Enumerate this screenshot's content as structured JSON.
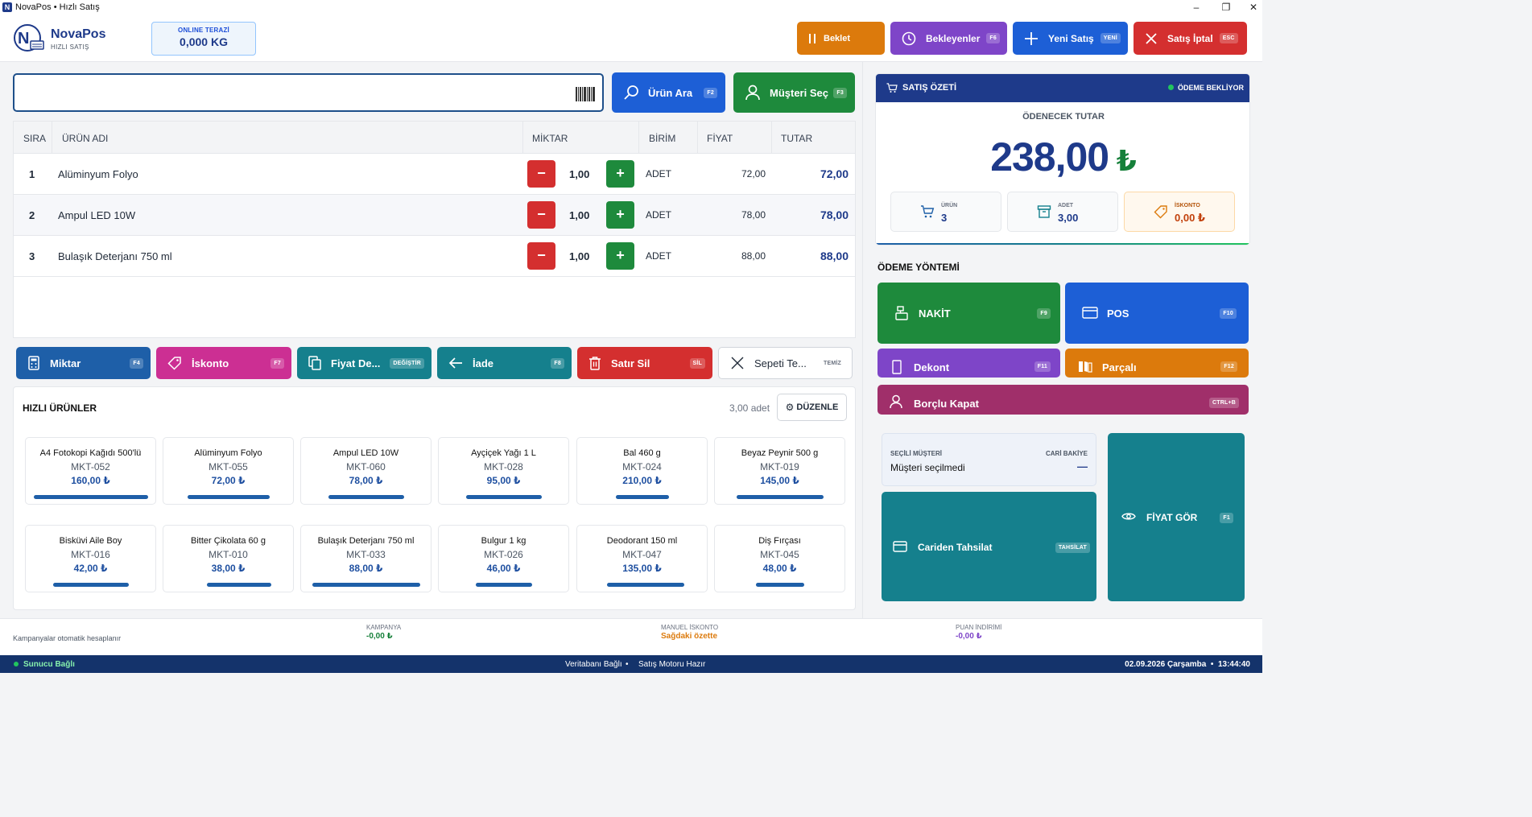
{
  "window": {
    "title": "NovaPos • Hızlı Satış",
    "app_icon": "N"
  },
  "header": {
    "brand": "NovaPos",
    "brand_sub": "HIZLI SATIŞ",
    "scale_label": "ONLINE TERAZİ",
    "scale_value": "0,000 KG",
    "buttons": {
      "hold": {
        "label": "Beklet",
        "color": "#dc7a0c"
      },
      "waiting": {
        "label": "Bekleyenler",
        "key": "F6",
        "color": "#7e45c8"
      },
      "new_sale": {
        "label": "Yeni Satış",
        "key": "YENİ",
        "color": "#1d5fd6"
      },
      "cancel": {
        "label": "Satış İptal",
        "key": "ESC",
        "color": "#d42f2f"
      }
    }
  },
  "search": {
    "placeholder": "",
    "find_product": {
      "label": "Ürün Ara",
      "key": "F2"
    },
    "select_customer": {
      "label": "Müşteri Seç",
      "key": "F3"
    }
  },
  "table": {
    "columns": {
      "no": "SIRA",
      "name": "ÜRÜN ADI",
      "qty": "MİKTAR",
      "unit": "BİRİM",
      "price": "FİYAT",
      "total": "TUTAR"
    },
    "rows": [
      {
        "no": "1",
        "name": "Alüminyum Folyo",
        "qty": "1,00",
        "unit": "ADET",
        "price": "72,00",
        "total": "72,00",
        "minus": "−",
        "plus": "+"
      },
      {
        "no": "2",
        "name": "Ampul LED 10W",
        "qty": "1,00",
        "unit": "ADET",
        "price": "78,00",
        "total": "78,00",
        "minus": "−",
        "plus": "+"
      },
      {
        "no": "3",
        "name": "Bulaşık Deterjanı 750 ml",
        "qty": "1,00",
        "unit": "ADET",
        "price": "88,00",
        "total": "88,00",
        "minus": "−",
        "plus": "+"
      }
    ]
  },
  "actions": {
    "qty": {
      "label": "Miktar",
      "key": "F4"
    },
    "discount": {
      "label": "İskonto",
      "key": "F7"
    },
    "price": {
      "label": "Fiyat De...",
      "key": "DEĞİŞTİR"
    },
    "refund": {
      "label": "İade",
      "key": "F8"
    },
    "delete": {
      "label": "Satır Sil",
      "key": "SİL"
    },
    "clear": {
      "label": "Sepeti Te...",
      "key": "TEMİZ"
    }
  },
  "quick": {
    "title": "HIZLI ÜRÜNLER",
    "count": "3,00 adet",
    "edit_label": "DÜZENLE",
    "products": [
      {
        "name": "A4 Fotokopi Kağıdı 500'lü",
        "code": "MKT-052",
        "price": "160,00 ₺"
      },
      {
        "name": "Alüminyum Folyo",
        "code": "MKT-055",
        "price": "72,00 ₺"
      },
      {
        "name": "Ampul LED 10W",
        "code": "MKT-060",
        "price": "78,00 ₺"
      },
      {
        "name": "Ayçiçek Yağı 1 L",
        "code": "MKT-028",
        "price": "95,00 ₺"
      },
      {
        "name": "Bal 460 g",
        "code": "MKT-024",
        "price": "210,00 ₺"
      },
      {
        "name": "Beyaz Peynir 500 g",
        "code": "MKT-019",
        "price": "145,00 ₺"
      },
      {
        "name": "Bisküvi Aile Boy",
        "code": "MKT-016",
        "price": "42,00 ₺"
      },
      {
        "name": "Bitter Çikolata 60 g",
        "code": "MKT-010",
        "price": "38,00 ₺"
      },
      {
        "name": "Bulaşık Deterjanı 750 ml",
        "code": "MKT-033",
        "price": "88,00 ₺"
      },
      {
        "name": "Bulgur 1 kg",
        "code": "MKT-026",
        "price": "46,00 ₺"
      },
      {
        "name": "Deodorant 150 ml",
        "code": "MKT-047",
        "price": "135,00 ₺"
      },
      {
        "name": "Diş Fırçası",
        "code": "MKT-045",
        "price": "48,00 ₺"
      }
    ]
  },
  "summary": {
    "title": "SATIŞ ÖZETİ",
    "status": "ÖDEME BEKLİYOR",
    "due_label": "ÖDENECEK TUTAR",
    "amount": "238,00",
    "currency": "₺",
    "items_label": "ÜRÜN",
    "items_value": "3",
    "qty_label": "ADET",
    "qty_value": "3,00",
    "disc_label": "İSKONTO",
    "disc_value": "0,00 ₺"
  },
  "payment": {
    "title": "ÖDEME YÖNTEMİ",
    "cash": {
      "label": "NAKİT",
      "key": "F9"
    },
    "pos": {
      "label": "POS",
      "key": "F10"
    },
    "receipt": {
      "label": "Dekont",
      "key": "F11"
    },
    "split": {
      "label": "Parçalı",
      "key": "F12"
    },
    "debt": {
      "label": "Borçlu Kapat",
      "key": "CTRL+B"
    }
  },
  "customer": {
    "label": "SEÇİLİ MÜŞTERİ",
    "balance_label": "CARİ BAKİYE",
    "name": "Müşteri seçilmedi",
    "balance": "—",
    "collect_label": "Cariden Tahsilat",
    "collect_key": "TAHSİLAT",
    "price_check_label": "FİYAT GÖR",
    "price_check_key": "F1"
  },
  "campaign": {
    "note": "Kampanyalar otomatik hesaplanır",
    "campaign_label": "KAMPANYA",
    "campaign_value": "-0,00 ₺",
    "manual_label": "MANUEL İSKONTO",
    "manual_value": "Sağdaki özette",
    "points_label": "PUAN İNDİRİMİ",
    "points_value": "-0,00 ₺"
  },
  "status": {
    "server": "Sunucu Bağlı",
    "db": "Veritabanı Bağlı",
    "sep": "•",
    "engine": "Satış Motoru Hazır",
    "datetime": "02.09.2026 Çarşamba  •  13:44:40"
  }
}
